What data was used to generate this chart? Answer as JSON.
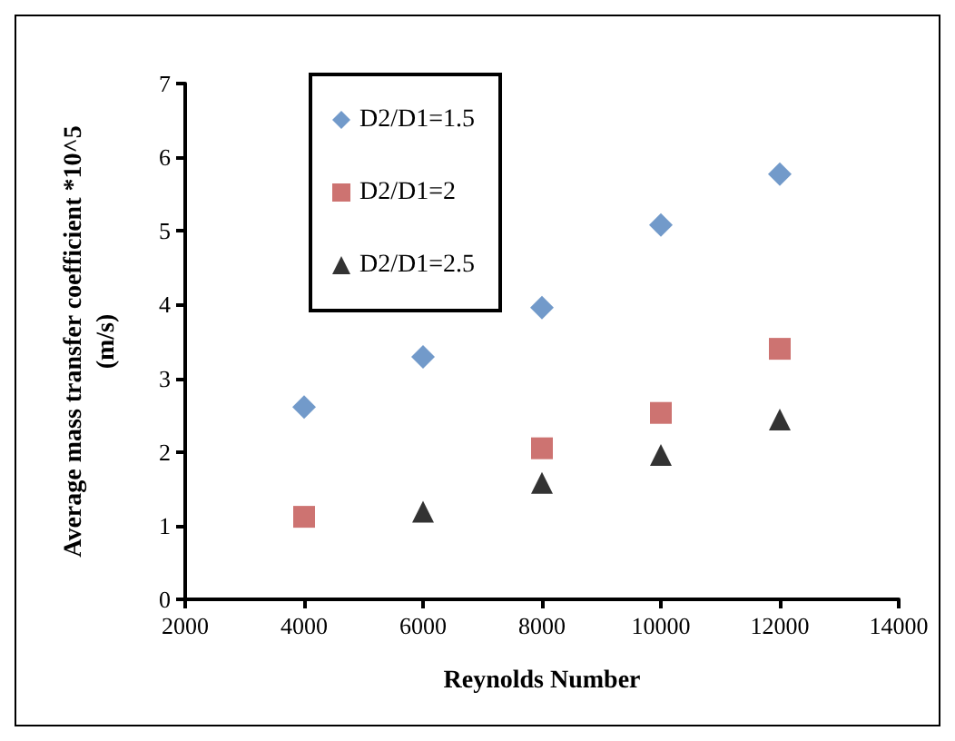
{
  "chart_data": {
    "type": "scatter",
    "xlabel": "Reynolds Number",
    "ylabel": "Average mass transfer coefficient *10^5\n(m/s)",
    "xlim": [
      2000,
      14000
    ],
    "xticks": [
      2000,
      4000,
      6000,
      8000,
      10000,
      12000,
      14000
    ],
    "ylim": [
      0,
      7
    ],
    "yticks": [
      0,
      1,
      2,
      3,
      4,
      5,
      6,
      7
    ],
    "grid": false,
    "legend": "top left",
    "series": [
      {
        "name": "D2/D1=1.5",
        "color": "#4f81bd",
        "marker": "diamond",
        "x": [
          4000,
          6000,
          8000,
          10000,
          12000
        ],
        "values": [
          2.61,
          3.29,
          3.96,
          5.08,
          5.77
        ]
      },
      {
        "name": "D2/D1=2",
        "color": "#c0504d",
        "marker": "square",
        "x": [
          4000,
          8000,
          10000,
          12000
        ],
        "values": [
          1.12,
          2.05,
          2.53,
          3.4
        ]
      },
      {
        "name": "D2/D1=2.5",
        "color": "#000000",
        "marker": "triangle",
        "x": [
          6000,
          8000,
          10000,
          12000
        ],
        "values": [
          1.19,
          1.58,
          1.96,
          2.44
        ]
      }
    ]
  }
}
